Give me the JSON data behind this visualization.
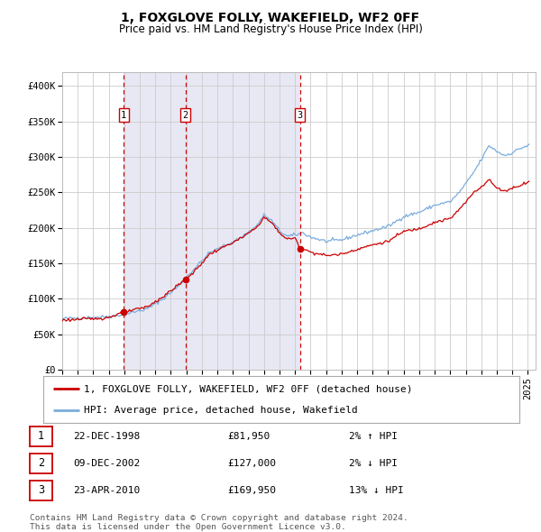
{
  "title": "1, FOXGLOVE FOLLY, WAKEFIELD, WF2 0FF",
  "subtitle": "Price paid vs. HM Land Registry's House Price Index (HPI)",
  "ylim": [
    0,
    420000
  ],
  "yticks": [
    0,
    50000,
    100000,
    150000,
    200000,
    250000,
    300000,
    350000,
    400000
  ],
  "ytick_labels": [
    "£0",
    "£50K",
    "£100K",
    "£150K",
    "£200K",
    "£250K",
    "£300K",
    "£350K",
    "£400K"
  ],
  "xlim_start": 1995.0,
  "xlim_end": 2025.5,
  "background_color": "#ffffff",
  "plot_bg_color": "#ffffff",
  "grid_color": "#cccccc",
  "price_line_color": "#cc0000",
  "hpi_line_color": "#7aaddc",
  "transaction_marker_color": "#cc0000",
  "dashed_line_color": "#cc0000",
  "sale_bg_color": "#e8e8f4",
  "legend_label_price": "1, FOXGLOVE FOLLY, WAKEFIELD, WF2 0FF (detached house)",
  "legend_label_hpi": "HPI: Average price, detached house, Wakefield",
  "transactions": [
    {
      "id": 1,
      "date": 1998.97,
      "price": 81950,
      "label": "1",
      "date_str": "22-DEC-1998",
      "price_str": "£81,950",
      "hpi_str": "2% ↑ HPI"
    },
    {
      "id": 2,
      "date": 2002.94,
      "price": 127000,
      "label": "2",
      "date_str": "09-DEC-2002",
      "price_str": "£127,000",
      "hpi_str": "2% ↓ HPI"
    },
    {
      "id": 3,
      "date": 2010.31,
      "price": 169950,
      "label": "3",
      "date_str": "23-APR-2010",
      "price_str": "£169,950",
      "hpi_str": "13% ↓ HPI"
    }
  ],
  "footer_text": "Contains HM Land Registry data © Crown copyright and database right 2024.\nThis data is licensed under the Open Government Licence v3.0.",
  "title_fontsize": 10,
  "subtitle_fontsize": 8.5,
  "tick_fontsize": 7.5,
  "legend_fontsize": 8,
  "footer_fontsize": 6.8,
  "table_fontsize": 8
}
